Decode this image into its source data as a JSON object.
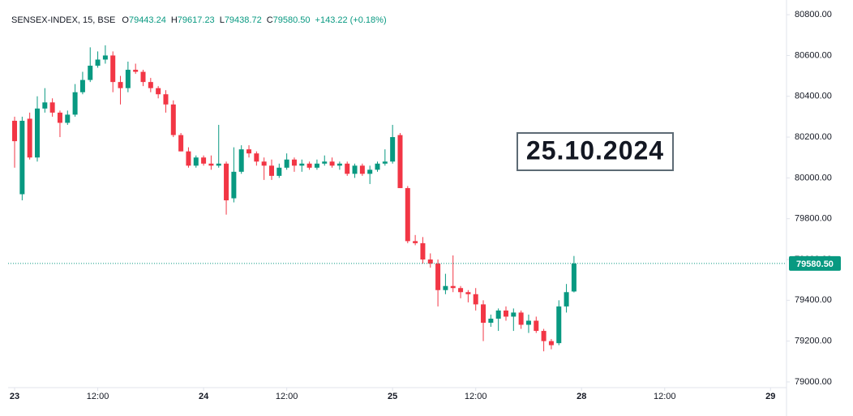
{
  "chart_data": {
    "type": "candlestick",
    "title": "SENSEX-INDEX, 15, BSE",
    "readout": [
      {
        "prefix": "O",
        "value": "79443.24"
      },
      {
        "prefix": "H",
        "value": "79617.23"
      },
      {
        "prefix": "L",
        "value": "79438.72"
      },
      {
        "prefix": "C",
        "value": "79580.50"
      }
    ],
    "change": "+143.22 (+0.18%)",
    "annotation": "25.10.2024",
    "up_color": "#089981",
    "down_color": "#f23645",
    "x": [
      0,
      1,
      2,
      3,
      4,
      5,
      6,
      7,
      8,
      9,
      10,
      11,
      12,
      13,
      14,
      15,
      16,
      17,
      18,
      19,
      20,
      21,
      22,
      23,
      24,
      25,
      26,
      27,
      28,
      29,
      30,
      31,
      32,
      33,
      34,
      35,
      36,
      37,
      38,
      39,
      40,
      41,
      42,
      43,
      44,
      45,
      46,
      47,
      48,
      49,
      50,
      51,
      52,
      53,
      54,
      55,
      56,
      57,
      58,
      59,
      60,
      61,
      62,
      63,
      64,
      65,
      66,
      67,
      68,
      69,
      70,
      71,
      72,
      73,
      74
    ],
    "open": [
      80280,
      79920,
      80290,
      80100,
      80340,
      80370,
      80320,
      80270,
      80310,
      80420,
      80480,
      80550,
      80580,
      80600,
      80470,
      80440,
      80530,
      80520,
      80470,
      80440,
      80410,
      80360,
      80210,
      80130,
      80060,
      80100,
      80070,
      80060,
      80070,
      79900,
      80030,
      80140,
      80120,
      80080,
      80060,
      80010,
      80050,
      80090,
      80060,
      80070,
      80050,
      80070,
      80080,
      80060,
      80070,
      80020,
      80060,
      80020,
      80040,
      80070,
      80080,
      80210,
      79950,
      79690,
      79680,
      79600,
      79580,
      79450,
      79470,
      79460,
      79440,
      79430,
      79380,
      79290,
      79310,
      79350,
      79320,
      79340,
      79280,
      79300,
      79250,
      79200,
      79190,
      79370,
      79443.24
    ],
    "high": [
      80300,
      80300,
      80320,
      80400,
      80440,
      80390,
      80330,
      80330,
      80460,
      80520,
      80640,
      80620,
      80650,
      80620,
      80500,
      80570,
      80560,
      80530,
      80490,
      80450,
      80430,
      80380,
      80220,
      80150,
      80110,
      80110,
      80110,
      80260,
      80080,
      80150,
      80160,
      80160,
      80130,
      80100,
      80090,
      80070,
      80120,
      80100,
      80090,
      80080,
      80090,
      80110,
      80100,
      80080,
      80080,
      80070,
      80070,
      80060,
      80080,
      80140,
      80260,
      80220,
      79960,
      79720,
      79710,
      79630,
      79600,
      79530,
      79620,
      79470,
      79450,
      79460,
      79400,
      79330,
      79360,
      79370,
      79360,
      79350,
      79330,
      79320,
      79260,
      79210,
      79400,
      79480,
      79617.23
    ],
    "low": [
      80050,
      79890,
      80090,
      80080,
      80320,
      80300,
      80200,
      80260,
      80300,
      80410,
      80470,
      80540,
      80560,
      80420,
      80360,
      80420,
      80510,
      80450,
      80420,
      80390,
      80320,
      80200,
      80130,
      80050,
      80050,
      80060,
      80040,
      80050,
      79820,
      79880,
      80020,
      80100,
      80060,
      79990,
      79990,
      80000,
      80040,
      80030,
      80030,
      80040,
      80040,
      80060,
      80050,
      80040,
      80010,
      80000,
      80010,
      79970,
      80030,
      80060,
      80070,
      79950,
      79680,
      79670,
      79580,
      79560,
      79370,
      79430,
      79440,
      79410,
      79390,
      79350,
      79200,
      79270,
      79250,
      79300,
      79250,
      79260,
      79240,
      79240,
      79150,
      79160,
      79180,
      79340,
      79438.72
    ],
    "close": [
      80180,
      80280,
      80100,
      80340,
      80370,
      80320,
      80270,
      80310,
      80420,
      80480,
      80550,
      80580,
      80600,
      80470,
      80440,
      80530,
      80520,
      80470,
      80440,
      80410,
      80360,
      80210,
      80130,
      80060,
      80100,
      80070,
      80060,
      80070,
      79890,
      80030,
      80140,
      80120,
      80080,
      80060,
      80010,
      80050,
      80090,
      80060,
      80070,
      80050,
      80070,
      80080,
      80060,
      80070,
      80020,
      80060,
      80020,
      80040,
      80070,
      80080,
      80200,
      79950,
      79690,
      79680,
      79600,
      79580,
      79450,
      79470,
      79460,
      79440,
      79430,
      79380,
      79290,
      79310,
      79350,
      79320,
      79340,
      79280,
      79300,
      79250,
      79200,
      79180,
      79370,
      79440,
      79580.5
    ],
    "xlim": [
      -0.86,
      101.9
    ],
    "xticks": [
      {
        "value": 0,
        "label": "23"
      },
      {
        "value": 11,
        "label": "12:00"
      },
      {
        "value": 25,
        "label": "24"
      },
      {
        "value": 36,
        "label": "12:00"
      },
      {
        "value": 50,
        "label": "25"
      },
      {
        "value": 61,
        "label": "12:00"
      },
      {
        "value": 75,
        "label": "28"
      },
      {
        "value": 86,
        "label": "12:00"
      },
      {
        "value": 100,
        "label": "29"
      }
    ],
    "ylim": [
      78972,
      80872
    ],
    "yticks": [
      {
        "value": 79000,
        "label": "79000.00"
      },
      {
        "value": 79200,
        "label": "79200.00"
      },
      {
        "value": 79400,
        "label": "79400.00"
      },
      {
        "value": 79600,
        "label": "79600.00"
      },
      {
        "value": 79800,
        "label": "79800.00"
      },
      {
        "value": 80000,
        "label": "80000.00"
      },
      {
        "value": 80200,
        "label": "80200.00"
      },
      {
        "value": 80400,
        "label": "80400.00"
      },
      {
        "value": 80600,
        "label": "80600.00"
      },
      {
        "value": 80800,
        "label": "80800.00"
      }
    ],
    "last_price": {
      "value": 79580.5,
      "label": "79580.50"
    }
  }
}
